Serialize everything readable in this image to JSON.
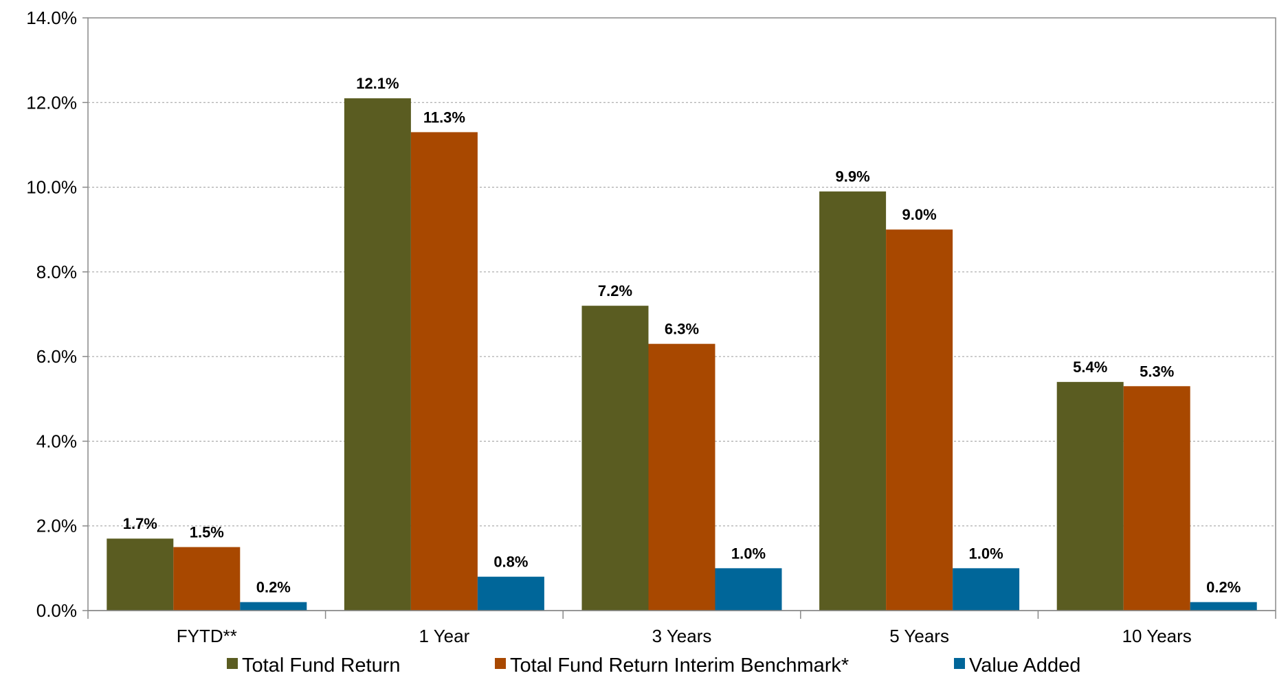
{
  "chart_data": {
    "type": "bar",
    "title": "",
    "xlabel": "",
    "ylabel": "",
    "categories": [
      "FYTD**",
      "1 Year",
      "3 Years",
      "5 Years",
      "10 Years"
    ],
    "series": [
      {
        "name": "Total Fund Return",
        "color": "#5a5c21",
        "values": [
          1.7,
          12.1,
          7.2,
          9.9,
          5.4
        ]
      },
      {
        "name": "Total Fund Return Interim Benchmark*",
        "color": "#a84800",
        "values": [
          1.5,
          11.3,
          6.3,
          9.0,
          5.3
        ]
      },
      {
        "name": "Value Added",
        "color": "#006699",
        "values": [
          0.2,
          0.8,
          1.0,
          1.0,
          0.2
        ]
      }
    ],
    "value_labels": [
      [
        "1.7%",
        "12.1%",
        "7.2%",
        "9.9%",
        "5.4%"
      ],
      [
        "1.5%",
        "11.3%",
        "6.3%",
        "9.0%",
        "5.3%"
      ],
      [
        "0.2%",
        "0.8%",
        "1.0%",
        "1.0%",
        "0.2%"
      ]
    ],
    "ylim": [
      0,
      14
    ],
    "yticks": [
      "0.0%",
      "2.0%",
      "4.0%",
      "6.0%",
      "8.0%",
      "10.0%",
      "12.0%",
      "14.0%"
    ],
    "grid": true,
    "legend_position": "bottom"
  }
}
